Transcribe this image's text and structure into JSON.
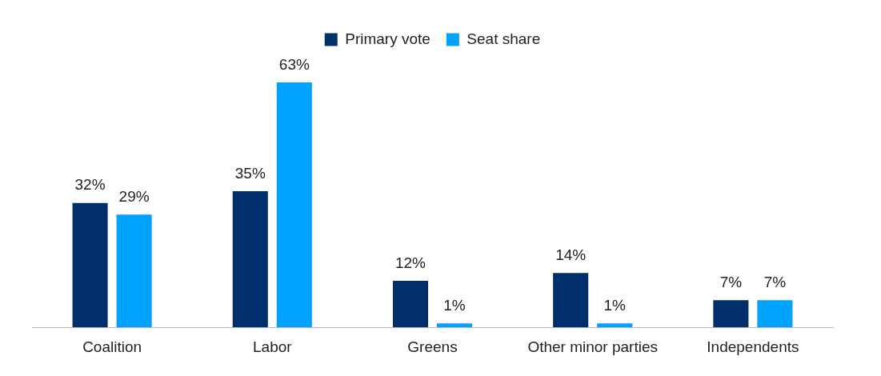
{
  "chart_data": {
    "type": "bar",
    "categories": [
      "Coalition",
      "Labor",
      "Greens",
      "Other minor parties",
      "Independents"
    ],
    "series": [
      {
        "name": "Primary vote",
        "color": "#002f6c",
        "values": [
          32,
          35,
          12,
          14,
          7
        ],
        "value_labels": [
          "32%",
          "35%",
          "12%",
          "14%",
          "7%"
        ]
      },
      {
        "name": "Seat share",
        "color": "#00a2ff",
        "values": [
          29,
          63,
          1,
          1,
          7
        ],
        "value_labels": [
          "29%",
          "63%",
          "1%",
          "1%",
          "7%"
        ]
      }
    ],
    "legend": "top",
    "grid": false,
    "tick_labels": "x"
  }
}
